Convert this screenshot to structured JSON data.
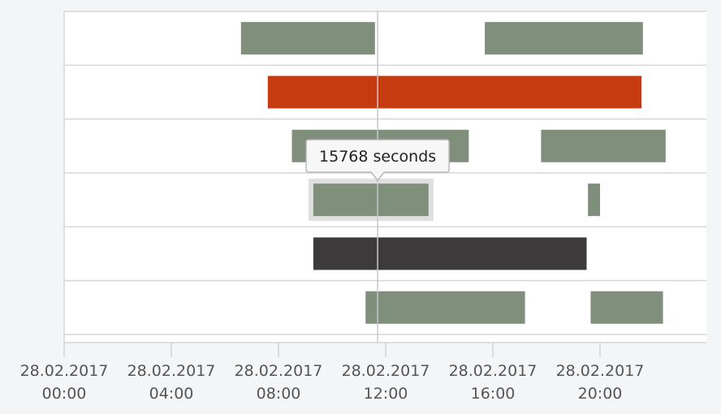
{
  "chart_data": {
    "type": "timeline",
    "x_range_hours": [
      0,
      24
    ],
    "x_ticks": [
      {
        "hour": 0,
        "date": "28.02.2017",
        "time": "00:00"
      },
      {
        "hour": 4,
        "date": "28.02.2017",
        "time": "04:00"
      },
      {
        "hour": 8,
        "date": "28.02.2017",
        "time": "08:00"
      },
      {
        "hour": 12,
        "date": "28.02.2017",
        "time": "12:00"
      },
      {
        "hour": 16,
        "date": "28.02.2017",
        "time": "16:00"
      },
      {
        "hour": 20,
        "date": "28.02.2017",
        "time": "20:00"
      }
    ],
    "crosshair_hour": 11.7,
    "grid": true,
    "rows": [
      {
        "bars": [
          {
            "start": 6.6,
            "end": 11.6,
            "color": "#7f8f7b"
          },
          {
            "start": 15.7,
            "end": 21.6,
            "color": "#7f8f7b"
          }
        ]
      },
      {
        "bars": [
          {
            "start": 7.6,
            "end": 21.55,
            "color": "#c63c10"
          }
        ]
      },
      {
        "bars": [
          {
            "start": 8.5,
            "end": 15.1,
            "color": "#7f8f7b"
          },
          {
            "start": 17.8,
            "end": 22.45,
            "color": "#7f8f7b"
          }
        ]
      },
      {
        "bars": [
          {
            "start": 9.3,
            "end": 13.6,
            "color": "#7f8f7b",
            "highlighted": true
          },
          {
            "start": 19.55,
            "end": 20.0,
            "color": "#7f8f7b"
          }
        ]
      },
      {
        "bars": [
          {
            "start": 9.3,
            "end": 19.5,
            "color": "#3c3a3b"
          }
        ]
      },
      {
        "bars": [
          {
            "start": 11.25,
            "end": 17.2,
            "color": "#7f8f7b"
          },
          {
            "start": 19.65,
            "end": 22.35,
            "color": "#7f8f7b"
          }
        ]
      }
    ],
    "tooltip": {
      "text": "15768 seconds",
      "row": 3,
      "bar": 0
    }
  }
}
